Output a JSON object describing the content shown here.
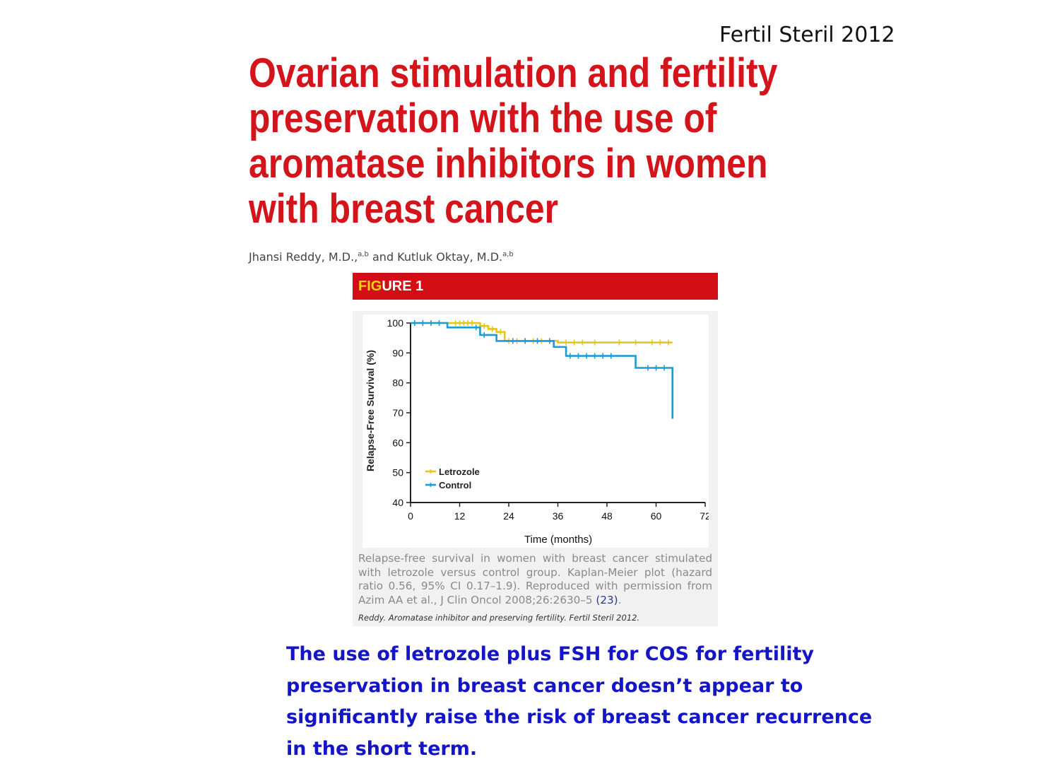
{
  "slide": {
    "citation": "Fertil Steril 2012",
    "title_lines": [
      "Ovarian stimulation and fertility",
      "preservation with the use of",
      "aromatase inhibitors in women",
      "with breast cancer"
    ],
    "authors": {
      "author1": "Jhansi Reddy, M.D.,",
      "author1_sup": "a,b",
      "connector": " and Kutluk Oktay, M.D.",
      "author2_sup": "a,b"
    },
    "figure_label_part1": "FIG",
    "figure_label_part2": "URE 1",
    "caption": "Relapse-free survival in women with breast cancer stimulated with letrozole versus control group. Kaplan-Meier plot (hazard ratio 0.56, 95% CI 0.17–1.9). Reproduced with permission from Azim AA et al., J Clin Oncol 2008;26:2630–5 ",
    "caption_ref": "(23)",
    "caption_end": ".",
    "source": "Reddy. Aromatase inhibitor and preserving fertility. Fertil Steril 2012.",
    "summary_lines": [
      "The use of letrozole plus FSH for COS for fertility",
      "preservation in breast cancer doesn’t appear to",
      "significantly raise the risk of breast cancer recurrence",
      "in the short term."
    ]
  },
  "colors": {
    "title": "#d3141b",
    "figure_header": "#d20d14",
    "summary": "#1515c8",
    "letrozole": "#e8c619",
    "control": "#1e9ad6"
  },
  "chart_data": {
    "type": "line",
    "step": true,
    "xlabel": "Time (months)",
    "ylabel": "Relapse-Free Survival (%)",
    "xlim": [
      0,
      72
    ],
    "ylim": [
      40,
      100
    ],
    "xticks": [
      0,
      12,
      24,
      36,
      48,
      60,
      72
    ],
    "yticks": [
      40,
      50,
      60,
      70,
      80,
      90,
      100
    ],
    "legend_position": "lower-left",
    "grid": false,
    "series": [
      {
        "name": "Letrozole",
        "color": "#e8c619",
        "x": [
          0,
          9,
          17,
          19,
          21,
          23,
          36,
          64
        ],
        "y": [
          100,
          100,
          99,
          98,
          97,
          94,
          93.5,
          93.5
        ],
        "censored_x": [
          11,
          12,
          13,
          14,
          15,
          18,
          20,
          22,
          24,
          26,
          28,
          30,
          32,
          38,
          40,
          42,
          45,
          51,
          55,
          59,
          61,
          63
        ]
      },
      {
        "name": "Control",
        "color": "#1e9ad6",
        "x": [
          0,
          9,
          17,
          21,
          35,
          38,
          55,
          64,
          64
        ],
        "y": [
          100,
          98.5,
          96,
          94,
          92,
          89,
          85,
          85,
          68
        ],
        "censored_x": [
          1,
          3,
          5,
          7,
          16,
          18,
          25,
          28,
          31,
          34,
          39,
          41,
          43,
          45,
          47,
          49,
          58,
          60,
          62
        ]
      }
    ]
  }
}
